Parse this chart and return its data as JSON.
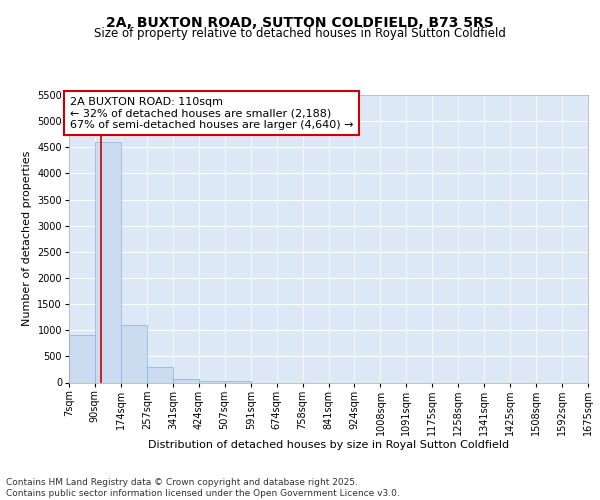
{
  "title": "2A, BUXTON ROAD, SUTTON COLDFIELD, B73 5RS",
  "subtitle": "Size of property relative to detached houses in Royal Sutton Coldfield",
  "xlabel": "Distribution of detached houses by size in Royal Sutton Coldfield",
  "ylabel": "Number of detached properties",
  "bin_edges": [
    7,
    90,
    174,
    257,
    341,
    424,
    507,
    591,
    674,
    758,
    841,
    924,
    1008,
    1091,
    1175,
    1258,
    1341,
    1425,
    1508,
    1592,
    1675
  ],
  "bin_labels": [
    "7sqm",
    "90sqm",
    "174sqm",
    "257sqm",
    "341sqm",
    "424sqm",
    "507sqm",
    "591sqm",
    "674sqm",
    "758sqm",
    "841sqm",
    "924sqm",
    "1008sqm",
    "1091sqm",
    "1175sqm",
    "1258sqm",
    "1341sqm",
    "1425sqm",
    "1508sqm",
    "1592sqm",
    "1675sqm"
  ],
  "bar_heights": [
    900,
    4600,
    1100,
    300,
    75,
    30,
    20,
    0,
    0,
    0,
    0,
    0,
    0,
    0,
    0,
    0,
    0,
    0,
    0,
    0
  ],
  "bar_color": "#ccdcf0",
  "bar_edge_color": "#8ab0d8",
  "property_line_x": 110,
  "property_line_color": "#cc0000",
  "ylim": [
    0,
    5500
  ],
  "yticks": [
    0,
    500,
    1000,
    1500,
    2000,
    2500,
    3000,
    3500,
    4000,
    4500,
    5000,
    5500
  ],
  "annotation_text": "2A BUXTON ROAD: 110sqm\n← 32% of detached houses are smaller (2,188)\n67% of semi-detached houses are larger (4,640) →",
  "annotation_box_color": "#cc0000",
  "background_color": "#dce8f5",
  "footer_text": "Contains HM Land Registry data © Crown copyright and database right 2025.\nContains public sector information licensed under the Open Government Licence v3.0.",
  "title_fontsize": 10,
  "subtitle_fontsize": 8.5,
  "axis_label_fontsize": 8,
  "tick_fontsize": 7,
  "annotation_fontsize": 8,
  "footer_fontsize": 6.5
}
